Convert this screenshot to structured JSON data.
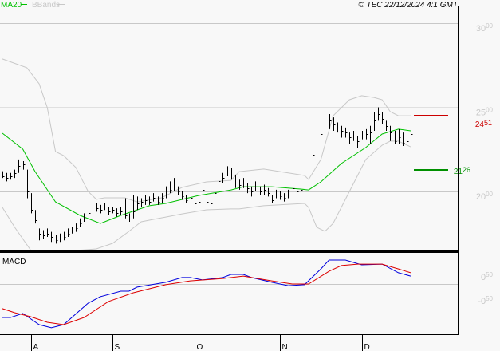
{
  "header": {
    "ma_label": "MA20",
    "bbands_label": "BBands",
    "copyright": "© TEC 22/12/2024 4:1 GMT"
  },
  "colors": {
    "ma20": "#00c000",
    "bbands": "#c8c8c8",
    "price_bars": "#000000",
    "macd": "#0000dd",
    "signal": "#dd0000",
    "resistance": "#cc0000",
    "support": "#009000",
    "background": "#f8f8f8"
  },
  "chart_data": [
    {
      "type": "ohlc",
      "title": "",
      "y_ticks": [
        "30.00",
        "25.00",
        "20.00"
      ],
      "y_tick_values": [
        30,
        25,
        20
      ],
      "ylim": [
        16.45,
        31.4
      ],
      "grid": true,
      "x_ticks": [
        {
          "label": "A",
          "bar": 7
        },
        {
          "label": "S",
          "bar": 27
        },
        {
          "label": "O",
          "bar": 47
        },
        {
          "label": "N",
          "bar": 68
        },
        {
          "label": "D",
          "bar": 88
        }
      ],
      "bars": [
        [
          21.2,
          20.8,
          20.9
        ],
        [
          21.1,
          20.6,
          20.8
        ],
        [
          21.1,
          20.7,
          20.9
        ],
        [
          21.3,
          20.8,
          21.1
        ],
        [
          21.9,
          21.1,
          21.5
        ],
        [
          21.8,
          21.3,
          21.6
        ],
        [
          21.3,
          19.6,
          20.0
        ],
        [
          19.9,
          18.7,
          18.9
        ],
        [
          18.9,
          18.1,
          18.3
        ],
        [
          17.8,
          17.1,
          17.5
        ],
        [
          17.7,
          17.2,
          17.4
        ],
        [
          17.8,
          17.3,
          17.5
        ],
        [
          17.6,
          17.0,
          17.3
        ],
        [
          17.4,
          16.9,
          17.1
        ],
        [
          17.5,
          17.0,
          17.2
        ],
        [
          17.6,
          17.1,
          17.3
        ],
        [
          17.8,
          17.3,
          17.5
        ],
        [
          17.9,
          17.5,
          17.7
        ],
        [
          18.1,
          17.6,
          17.8
        ],
        [
          18.4,
          17.9,
          18.1
        ],
        [
          18.7,
          18.2,
          18.4
        ],
        [
          19.0,
          18.5,
          18.7
        ],
        [
          19.4,
          18.8,
          19.1
        ],
        [
          19.3,
          18.8,
          19.0
        ],
        [
          19.2,
          18.7,
          18.9
        ],
        [
          19.3,
          18.9,
          19.1
        ],
        [
          19.1,
          18.6,
          18.8
        ],
        [
          19.1,
          18.7,
          18.9
        ],
        [
          19.0,
          18.5,
          18.7
        ],
        [
          19.1,
          18.6,
          18.8
        ],
        [
          19.6,
          18.4,
          18.6
        ],
        [
          18.7,
          18.2,
          18.4
        ],
        [
          19.8,
          18.4,
          18.8
        ],
        [
          19.7,
          18.9,
          19.3
        ],
        [
          19.6,
          19.1,
          19.4
        ],
        [
          19.8,
          19.2,
          19.5
        ],
        [
          19.7,
          19.2,
          19.4
        ],
        [
          19.9,
          19.4,
          19.6
        ],
        [
          19.7,
          19.2,
          19.4
        ],
        [
          19.9,
          19.3,
          19.6
        ],
        [
          20.3,
          19.6,
          19.8
        ],
        [
          20.6,
          19.9,
          20.1
        ],
        [
          20.8,
          20.0,
          20.3
        ],
        [
          20.3,
          19.8,
          20.0
        ],
        [
          20.0,
          19.5,
          19.7
        ],
        [
          19.8,
          19.3,
          19.5
        ],
        [
          19.9,
          19.4,
          19.6
        ],
        [
          19.6,
          19.1,
          19.3
        ],
        [
          19.7,
          19.2,
          19.4
        ],
        [
          20.8,
          19.6,
          20.1
        ],
        [
          19.7,
          19.1,
          19.4
        ],
        [
          19.6,
          18.8,
          19.3
        ],
        [
          20.4,
          19.6,
          19.9
        ],
        [
          20.9,
          20.1,
          20.6
        ],
        [
          21.1,
          20.5,
          20.8
        ],
        [
          21.5,
          20.9,
          21.2
        ],
        [
          21.4,
          20.7,
          21.0
        ],
        [
          21.0,
          20.2,
          20.5
        ],
        [
          20.7,
          20.1,
          20.4
        ],
        [
          20.8,
          20.2,
          20.5
        ],
        [
          20.5,
          19.9,
          20.2
        ],
        [
          20.3,
          19.7,
          20.0
        ],
        [
          20.6,
          20.0,
          20.3
        ],
        [
          20.3,
          19.8,
          20.0
        ],
        [
          20.4,
          19.8,
          20.1
        ],
        [
          20.2,
          19.7,
          19.9
        ],
        [
          19.8,
          19.3,
          19.5
        ],
        [
          20.1,
          19.6,
          19.8
        ],
        [
          20.0,
          19.5,
          19.7
        ],
        [
          19.9,
          19.4,
          19.6
        ],
        [
          20.1,
          19.6,
          19.8
        ],
        [
          20.7,
          19.9,
          20.2
        ],
        [
          20.3,
          19.7,
          20.0
        ],
        [
          20.4,
          19.8,
          20.1
        ],
        [
          20.2,
          19.6,
          19.8
        ],
        [
          20.7,
          19.5,
          20.3
        ],
        [
          22.7,
          21.8,
          22.2
        ],
        [
          23.3,
          22.3,
          22.6
        ],
        [
          23.9,
          22.8,
          23.4
        ],
        [
          24.3,
          23.3,
          23.8
        ],
        [
          24.6,
          23.7,
          24.2
        ],
        [
          24.4,
          23.6,
          24.0
        ],
        [
          24.1,
          23.5,
          23.8
        ],
        [
          23.9,
          23.2,
          23.6
        ],
        [
          23.8,
          23.2,
          23.5
        ],
        [
          23.5,
          22.8,
          23.2
        ],
        [
          23.6,
          23.0,
          23.3
        ],
        [
          23.3,
          22.6,
          23.0
        ],
        [
          23.6,
          23.1,
          23.3
        ],
        [
          23.7,
          23.1,
          23.4
        ],
        [
          23.9,
          22.8,
          23.5
        ],
        [
          24.7,
          23.6,
          24.2
        ],
        [
          25.0,
          24.2,
          24.6
        ],
        [
          24.7,
          24.0,
          24.3
        ],
        [
          24.2,
          23.6,
          23.9
        ],
        [
          23.9,
          23.0,
          23.5
        ],
        [
          23.6,
          22.8,
          23.0
        ],
        [
          23.7,
          22.8,
          23.2
        ],
        [
          23.5,
          22.7,
          22.9
        ],
        [
          23.3,
          22.6,
          23.0
        ],
        [
          24.0,
          22.8,
          23.4
        ]
      ],
      "ma20": [
        [
          0,
          23.46
        ],
        [
          5,
          22.51
        ],
        [
          8,
          21.18
        ],
        [
          13,
          19.38
        ],
        [
          19,
          18.58
        ],
        [
          24,
          18.1
        ],
        [
          29,
          18.58
        ],
        [
          36,
          19.15
        ],
        [
          40,
          19.29
        ],
        [
          48,
          19.76
        ],
        [
          56,
          20.09
        ],
        [
          59,
          20.28
        ],
        [
          66,
          20.28
        ],
        [
          73,
          20.14
        ],
        [
          75,
          20.09
        ],
        [
          78,
          20.57
        ],
        [
          83,
          21.66
        ],
        [
          89,
          22.61
        ],
        [
          93,
          23.41
        ],
        [
          97,
          23.7
        ],
        [
          100,
          23.6
        ]
      ],
      "bb_upper": [
        [
          0,
          27.87
        ],
        [
          6,
          27.35
        ],
        [
          9,
          26.4
        ],
        [
          11,
          24.98
        ],
        [
          13,
          22.37
        ],
        [
          15,
          22.13
        ],
        [
          18,
          21.42
        ],
        [
          21,
          20.0
        ],
        [
          23,
          19.53
        ],
        [
          25,
          19.62
        ],
        [
          30,
          19.62
        ],
        [
          33,
          19.38
        ],
        [
          39,
          19.62
        ],
        [
          44,
          20.24
        ],
        [
          50,
          20.57
        ],
        [
          56,
          20.66
        ],
        [
          58,
          21.18
        ],
        [
          64,
          21.33
        ],
        [
          74,
          20.95
        ],
        [
          75,
          20.71
        ],
        [
          78,
          21.9
        ],
        [
          81,
          24.5
        ],
        [
          85,
          25.45
        ],
        [
          88,
          25.69
        ],
        [
          91,
          25.59
        ],
        [
          93,
          25.45
        ],
        [
          95,
          24.74
        ],
        [
          97,
          24.5
        ],
        [
          100,
          24.5
        ]
      ],
      "bb_lower": [
        [
          0,
          19.05
        ],
        [
          3,
          17.87
        ],
        [
          7,
          16.45
        ],
        [
          12,
          15.6
        ],
        [
          18,
          15.6
        ],
        [
          23,
          16.59
        ],
        [
          27,
          16.92
        ],
        [
          31,
          17.63
        ],
        [
          34,
          18.2
        ],
        [
          37,
          18.34
        ],
        [
          40,
          18.48
        ],
        [
          44,
          18.67
        ],
        [
          50,
          18.91
        ],
        [
          56,
          18.96
        ],
        [
          58,
          18.96
        ],
        [
          64,
          19.15
        ],
        [
          74,
          19.29
        ],
        [
          75,
          19.05
        ],
        [
          77,
          17.87
        ],
        [
          79,
          17.63
        ],
        [
          81,
          18.1
        ],
        [
          85,
          20.0
        ],
        [
          89,
          21.9
        ],
        [
          93,
          22.75
        ],
        [
          95,
          22.99
        ],
        [
          97,
          22.99
        ],
        [
          100,
          22.65
        ]
      ],
      "levels": [
        {
          "value": 24.51,
          "label": "24.51",
          "color": "#cc0000"
        },
        {
          "value": 21.26,
          "label": "21.26",
          "color": "#009000"
        }
      ]
    },
    {
      "type": "line",
      "title": "MACD",
      "y_ticks": [
        "0.50",
        "-0.50"
      ],
      "y_tick_values": [
        0.5,
        -0.5
      ],
      "ylim": [
        -2.0,
        1.3
      ],
      "zero_line": true,
      "series": [
        {
          "key": "macd",
          "points": [
            [
              0,
              -1.4
            ],
            [
              2,
              -1.4
            ],
            [
              5,
              -1.23
            ],
            [
              9,
              -1.7
            ],
            [
              12,
              -1.83
            ],
            [
              15,
              -1.7
            ],
            [
              21,
              -0.8
            ],
            [
              24,
              -0.53
            ],
            [
              29,
              -0.3
            ],
            [
              31,
              -0.3
            ],
            [
              33,
              -0.13
            ],
            [
              40,
              0.07
            ],
            [
              44,
              0.27
            ],
            [
              46,
              0.27
            ],
            [
              49,
              0.17
            ],
            [
              54,
              0.27
            ],
            [
              56,
              0.4
            ],
            [
              59,
              0.4
            ],
            [
              61,
              0.27
            ],
            [
              66,
              0.07
            ],
            [
              70,
              -0.07
            ],
            [
              74,
              -0.03
            ],
            [
              78,
              0.63
            ],
            [
              80,
              1.0
            ],
            [
              84,
              1.0
            ],
            [
              88,
              0.8
            ],
            [
              93,
              0.83
            ],
            [
              97,
              0.47
            ],
            [
              100,
              0.33
            ]
          ]
        },
        {
          "key": "signal",
          "points": [
            [
              0,
              -1.03
            ],
            [
              3,
              -1.2
            ],
            [
              7,
              -1.37
            ],
            [
              11,
              -1.6
            ],
            [
              15,
              -1.7
            ],
            [
              20,
              -1.4
            ],
            [
              26,
              -0.73
            ],
            [
              32,
              -0.37
            ],
            [
              40,
              -0.03
            ],
            [
              46,
              0.13
            ],
            [
              54,
              0.23
            ],
            [
              59,
              0.33
            ],
            [
              66,
              0.13
            ],
            [
              71,
              0.0
            ],
            [
              75,
              0.0
            ],
            [
              80,
              0.53
            ],
            [
              83,
              0.77
            ],
            [
              87,
              0.83
            ],
            [
              93,
              0.83
            ],
            [
              97,
              0.63
            ],
            [
              100,
              0.47
            ]
          ]
        }
      ]
    }
  ]
}
